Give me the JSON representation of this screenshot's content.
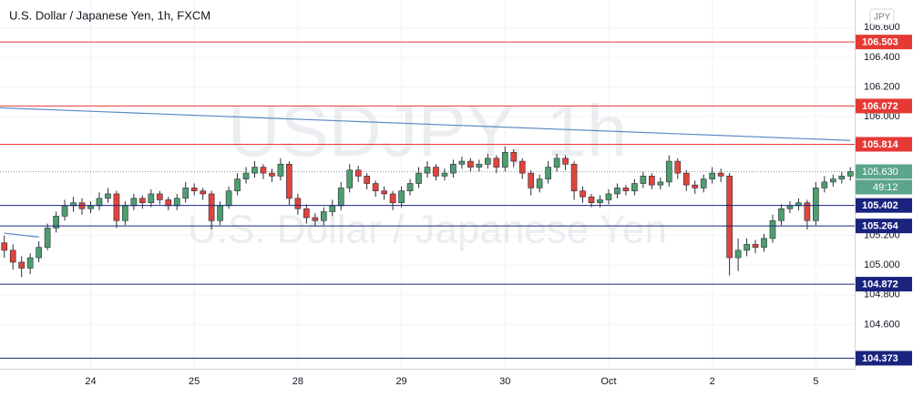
{
  "chart_data": {
    "type": "candlestick",
    "title": "U.S. Dollar / Japanese Yen, 1h, FXCM",
    "currency": "JPY",
    "watermark": [
      "USDJPY, 1h",
      "U.S. Dollar / Japanese Yen"
    ],
    "categories": [
      null,
      null,
      null,
      null,
      null,
      null,
      null,
      null,
      null,
      null,
      "24",
      null,
      null,
      null,
      null,
      null,
      null,
      null,
      null,
      null,
      null,
      null,
      "25",
      null,
      null,
      null,
      null,
      null,
      null,
      null,
      null,
      null,
      null,
      null,
      "28",
      null,
      null,
      null,
      null,
      null,
      null,
      null,
      null,
      null,
      null,
      null,
      "29",
      null,
      null,
      null,
      null,
      null,
      null,
      null,
      null,
      null,
      null,
      null,
      "30",
      null,
      null,
      null,
      null,
      null,
      null,
      null,
      null,
      null,
      null,
      null,
      "Oct",
      null,
      null,
      null,
      null,
      null,
      null,
      null,
      null,
      null,
      null,
      null,
      "2",
      null,
      null,
      null,
      null,
      null,
      null,
      null,
      null,
      null,
      null,
      null,
      "5",
      null,
      null,
      null,
      null
    ],
    "open": [
      105.15,
      105.1,
      105.02,
      104.98,
      105.05,
      105.12,
      105.25,
      105.33,
      105.4,
      105.42,
      105.38,
      105.4,
      105.45,
      105.48,
      105.3,
      105.4,
      105.45,
      105.42,
      105.48,
      105.44,
      105.4,
      105.45,
      105.52,
      105.5,
      105.48,
      105.3,
      105.4,
      105.5,
      105.58,
      105.62,
      105.66,
      105.62,
      105.6,
      105.68,
      105.45,
      105.38,
      105.32,
      105.3,
      105.36,
      105.4,
      105.52,
      105.64,
      105.6,
      105.55,
      105.5,
      105.48,
      105.42,
      105.5,
      105.55,
      105.62,
      105.66,
      105.6,
      105.62,
      105.68,
      105.7,
      105.66,
      105.68,
      105.72,
      105.66,
      105.76,
      105.7,
      105.62,
      105.52,
      105.58,
      105.66,
      105.72,
      105.68,
      105.5,
      105.46,
      105.42,
      105.44,
      105.48,
      105.52,
      105.5,
      105.55,
      105.6,
      105.54,
      105.56,
      105.7,
      105.62,
      105.54,
      105.52,
      105.58,
      105.62,
      105.6,
      105.05,
      105.1,
      105.14,
      105.12,
      105.18,
      105.3,
      105.38,
      105.4,
      105.42,
      105.3,
      105.52,
      105.56,
      105.58,
      105.6
    ],
    "high": [
      105.2,
      105.14,
      105.06,
      105.08,
      105.16,
      105.28,
      105.36,
      105.44,
      105.46,
      105.45,
      105.43,
      105.49,
      105.52,
      105.5,
      105.43,
      105.48,
      105.47,
      105.51,
      105.5,
      105.46,
      105.48,
      105.56,
      105.55,
      105.52,
      105.5,
      105.43,
      105.53,
      105.62,
      105.66,
      105.7,
      105.68,
      105.65,
      105.72,
      105.7,
      105.48,
      105.41,
      105.35,
      105.39,
      105.44,
      105.56,
      105.68,
      105.67,
      105.62,
      105.57,
      105.53,
      105.5,
      105.53,
      105.58,
      105.66,
      105.7,
      105.68,
      105.65,
      105.71,
      105.73,
      105.72,
      105.71,
      105.75,
      105.74,
      105.8,
      105.78,
      105.72,
      105.64,
      105.61,
      105.7,
      105.75,
      105.74,
      105.7,
      105.53,
      105.48,
      105.47,
      105.51,
      105.55,
      105.54,
      105.58,
      105.63,
      105.62,
      105.59,
      105.74,
      105.72,
      105.64,
      105.57,
      105.61,
      105.66,
      105.65,
      105.62,
      105.18,
      105.18,
      105.17,
      105.21,
      105.34,
      105.41,
      105.43,
      105.45,
      105.44,
      105.56,
      105.6,
      105.61,
      105.63,
      105.66
    ],
    "low": [
      105.05,
      104.97,
      104.92,
      104.94,
      105.02,
      105.1,
      105.22,
      105.3,
      105.36,
      105.34,
      105.35,
      105.37,
      105.42,
      105.25,
      105.27,
      105.37,
      105.38,
      105.39,
      105.41,
      105.37,
      105.37,
      105.42,
      105.47,
      105.44,
      105.24,
      105.27,
      105.38,
      105.47,
      105.55,
      105.59,
      105.58,
      105.56,
      105.57,
      105.4,
      105.34,
      105.28,
      105.26,
      105.27,
      105.33,
      105.37,
      105.49,
      105.56,
      105.51,
      105.46,
      105.44,
      105.37,
      105.39,
      105.47,
      105.52,
      105.59,
      105.57,
      105.57,
      105.59,
      105.65,
      105.63,
      105.63,
      105.65,
      105.62,
      105.63,
      105.66,
      105.58,
      105.47,
      105.49,
      105.55,
      105.63,
      105.64,
      105.44,
      105.42,
      105.39,
      105.39,
      105.41,
      105.45,
      105.47,
      105.47,
      105.52,
      105.51,
      105.51,
      105.53,
      105.58,
      105.5,
      105.48,
      105.49,
      105.55,
      105.56,
      104.93,
      104.96,
      105.06,
      105.08,
      105.09,
      105.15,
      105.27,
      105.35,
      105.37,
      105.24,
      105.27,
      105.49,
      105.53,
      105.55,
      105.57
    ],
    "close": [
      105.1,
      105.02,
      104.98,
      105.05,
      105.12,
      105.25,
      105.33,
      105.4,
      105.42,
      105.38,
      105.4,
      105.45,
      105.48,
      105.3,
      105.4,
      105.45,
      105.42,
      105.48,
      105.44,
      105.4,
      105.45,
      105.52,
      105.5,
      105.48,
      105.3,
      105.4,
      105.5,
      105.58,
      105.62,
      105.66,
      105.62,
      105.6,
      105.68,
      105.45,
      105.38,
      105.32,
      105.3,
      105.36,
      105.4,
      105.52,
      105.64,
      105.6,
      105.55,
      105.5,
      105.48,
      105.42,
      105.5,
      105.55,
      105.62,
      105.66,
      105.6,
      105.62,
      105.68,
      105.7,
      105.66,
      105.68,
      105.72,
      105.66,
      105.76,
      105.7,
      105.62,
      105.52,
      105.58,
      105.66,
      105.72,
      105.68,
      105.5,
      105.46,
      105.42,
      105.44,
      105.48,
      105.52,
      105.5,
      105.55,
      105.6,
      105.54,
      105.56,
      105.7,
      105.62,
      105.54,
      105.52,
      105.58,
      105.62,
      105.6,
      105.05,
      105.1,
      105.14,
      105.12,
      105.18,
      105.3,
      105.38,
      105.4,
      105.42,
      105.3,
      105.52,
      105.56,
      105.58,
      105.6,
      105.63
    ],
    "up_color": "#4e9e6e",
    "down_color": "#e0443c",
    "ylim": [
      104.302,
      106.786
    ],
    "yticks": [
      {
        "value": 106.6,
        "label": "106.600"
      },
      {
        "value": 106.4,
        "label": "106.400"
      },
      {
        "value": 106.2,
        "label": "106.200"
      },
      {
        "value": 106.0,
        "label": "106.000"
      },
      {
        "value": 105.2,
        "label": "105.200"
      },
      {
        "value": 105.0,
        "label": "105.000"
      },
      {
        "value": 104.8,
        "label": "104.800"
      },
      {
        "value": 104.6,
        "label": "104.600"
      }
    ],
    "grid": true,
    "levels": [
      {
        "value": 106.503,
        "label": "106.503",
        "color": "#e53935"
      },
      {
        "value": 106.072,
        "label": "106.072",
        "color": "#e53935"
      },
      {
        "value": 105.814,
        "label": "105.814",
        "color": "#e53935"
      },
      {
        "value": 105.402,
        "label": "105.402",
        "color": "#1a237e"
      },
      {
        "value": 105.264,
        "label": "105.264",
        "color": "#1a237e"
      },
      {
        "value": 104.872,
        "label": "104.872",
        "color": "#1a237e"
      },
      {
        "value": 104.373,
        "label": "104.373",
        "color": "#1a237e"
      }
    ],
    "trendlines": [
      {
        "x": [
          0,
          98
        ],
        "y": [
          106.06,
          105.84
        ],
        "color": "#5b8ac6"
      },
      {
        "x": [
          0,
          4
        ],
        "y": [
          105.215,
          105.19
        ],
        "color": "#5b8ac6"
      }
    ],
    "last_price": {
      "value": 105.63,
      "label": "105.630",
      "color": "#5ba58a"
    },
    "countdown": "49:12"
  }
}
